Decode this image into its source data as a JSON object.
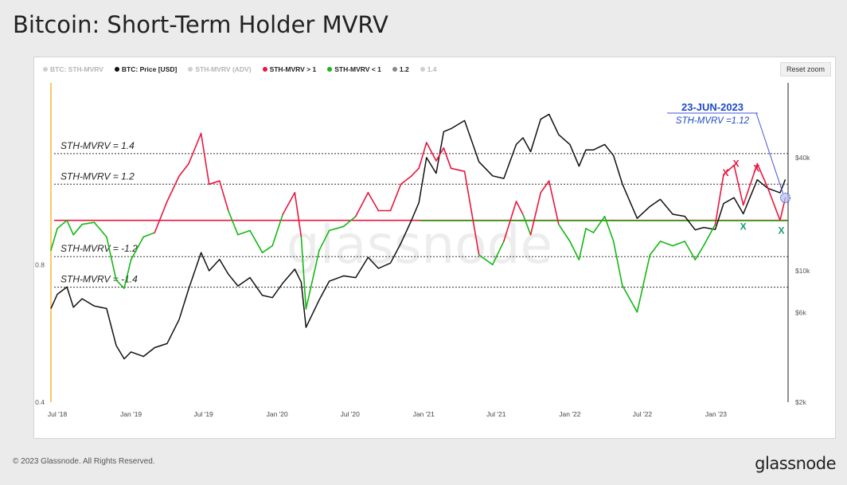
{
  "page": {
    "title": "Bitcoin: Short-Term Holder MVRV",
    "reset_zoom_label": "Reset zoom",
    "copyright": "© 2023 Glassnode. All Rights Reserved.",
    "logo_text": "glassnode",
    "watermark": "glassnode"
  },
  "chart_data": {
    "type": "line",
    "title": "Bitcoin: Short-Term Holder MVRV",
    "legend": [
      {
        "label": "BTC: STH-MVRV",
        "color": "#f5b731",
        "enabled": false
      },
      {
        "label": "BTC: Price [USD]",
        "color": "#111111",
        "enabled": true
      },
      {
        "label": "STH-MVRV (ADV)",
        "color": "#2c35b8",
        "enabled": false
      },
      {
        "label": "STH-MVRV > 1",
        "color": "#e8173f",
        "enabled": true
      },
      {
        "label": "STH-MVRV < 1",
        "color": "#14b814",
        "enabled": true
      },
      {
        "label": "1.2",
        "color": "#888888",
        "enabled": true
      },
      {
        "label": "1.4",
        "color": "#cccccc",
        "enabled": false
      }
    ],
    "legend_position": "top-left",
    "x_ticks": [
      "Jul '18",
      "Jan '19",
      "Jul '19",
      "Jan '20",
      "Jul '20",
      "Jan '21",
      "Jul '21",
      "Jan '22",
      "Jul '22",
      "Jan '23"
    ],
    "x_range": [
      "2018-06-15",
      "2023-06-30"
    ],
    "left_axis": {
      "scale": "log",
      "range": [
        0.4,
        2.0
      ],
      "tick_labels": [
        "0.4",
        "0.8"
      ]
    },
    "right_axis": {
      "scale": "log",
      "range": [
        2000,
        100000
      ],
      "tick_labels": [
        "$2k",
        "$6k",
        "$10k",
        "$40k"
      ]
    },
    "grid": false,
    "reference_lines": [
      {
        "label": "STH-MVRV = 1.4",
        "value": 1.4
      },
      {
        "label": "STH-MVRV = 1.2",
        "value": 1.2
      },
      {
        "label": "",
        "value": 1.0
      },
      {
        "label": "STH-MVRV = -1.2",
        "value": 0.833
      },
      {
        "label": "STH-MVRV = -1.4",
        "value": 0.714
      }
    ],
    "annotation": {
      "date": "23-JUN-2023",
      "text": "STH-MVRV =1.12",
      "value": 1.12
    },
    "markers": [
      {
        "symbol": "X",
        "color": "#e8173f",
        "date": "2023-01-25",
        "value": 1.27
      },
      {
        "symbol": "X",
        "color": "#e8173f",
        "date": "2023-02-20",
        "value": 1.33
      },
      {
        "symbol": "X",
        "color": "#e8173f",
        "date": "2023-04-12",
        "value": 1.3
      },
      {
        "symbol": "X",
        "color": "#14a06a",
        "date": "2023-03-10",
        "value": 0.97
      },
      {
        "symbol": "X",
        "color": "#14a06a",
        "date": "2023-06-13",
        "value": 0.95
      }
    ],
    "mvrv_series": {
      "name": "BTC: STH-MVRV",
      "x": [
        "2018-06-15",
        "2018-07-01",
        "2018-07-25",
        "2018-08-10",
        "2018-09-01",
        "2018-10-01",
        "2018-11-01",
        "2018-11-25",
        "2018-12-15",
        "2019-01-01",
        "2019-02-01",
        "2019-03-01",
        "2019-04-01",
        "2019-05-01",
        "2019-05-25",
        "2019-06-25",
        "2019-07-15",
        "2019-08-10",
        "2019-09-01",
        "2019-09-25",
        "2019-10-25",
        "2019-11-25",
        "2019-12-20",
        "2020-01-15",
        "2020-02-14",
        "2020-03-01",
        "2020-03-13",
        "2020-04-15",
        "2020-05-10",
        "2020-06-15",
        "2020-07-15",
        "2020-08-15",
        "2020-09-10",
        "2020-10-10",
        "2020-11-05",
        "2020-12-01",
        "2020-12-20",
        "2021-01-08",
        "2021-02-01",
        "2021-02-20",
        "2021-03-10",
        "2021-04-13",
        "2021-05-19",
        "2021-06-22",
        "2021-07-20",
        "2021-08-20",
        "2021-09-06",
        "2021-09-25",
        "2021-10-20",
        "2021-11-10",
        "2021-12-04",
        "2022-01-01",
        "2022-01-24",
        "2022-02-10",
        "2022-03-01",
        "2022-03-29",
        "2022-04-20",
        "2022-05-12",
        "2022-06-18",
        "2022-07-20",
        "2022-08-15",
        "2022-09-15",
        "2022-10-15",
        "2022-11-10",
        "2022-12-01",
        "2022-12-30",
        "2023-01-20",
        "2023-02-15",
        "2023-03-10",
        "2023-04-14",
        "2023-05-10",
        "2023-06-10",
        "2023-06-23"
      ],
      "y": [
        0.86,
        0.96,
        1.0,
        0.93,
        0.98,
        0.99,
        0.92,
        0.74,
        0.71,
        0.82,
        0.92,
        0.94,
        1.1,
        1.25,
        1.33,
        1.55,
        1.2,
        1.22,
        1.05,
        0.93,
        0.95,
        0.85,
        0.88,
        1.03,
        1.15,
        0.92,
        0.64,
        0.86,
        0.95,
        0.97,
        1.02,
        1.15,
        1.05,
        1.05,
        1.2,
        1.25,
        1.3,
        1.48,
        1.35,
        1.44,
        1.3,
        1.28,
        0.84,
        0.8,
        0.9,
        1.1,
        1.03,
        0.93,
        1.15,
        1.22,
        0.98,
        0.9,
        0.82,
        0.96,
        0.94,
        1.02,
        0.9,
        0.72,
        0.63,
        0.84,
        0.9,
        0.88,
        0.9,
        0.82,
        0.88,
        0.98,
        1.26,
        1.32,
        1.08,
        1.33,
        1.18,
        1.0,
        1.12
      ]
    },
    "price_series": {
      "name": "BTC: Price [USD]",
      "x": [
        "2018-06-15",
        "2018-07-01",
        "2018-07-25",
        "2018-08-10",
        "2018-09-01",
        "2018-10-01",
        "2018-11-01",
        "2018-11-25",
        "2018-12-15",
        "2019-01-01",
        "2019-02-01",
        "2019-03-01",
        "2019-04-01",
        "2019-05-01",
        "2019-05-25",
        "2019-06-25",
        "2019-07-15",
        "2019-08-10",
        "2019-09-01",
        "2019-09-25",
        "2019-10-25",
        "2019-11-25",
        "2019-12-20",
        "2020-01-15",
        "2020-02-14",
        "2020-03-01",
        "2020-03-13",
        "2020-04-15",
        "2020-05-10",
        "2020-06-15",
        "2020-07-15",
        "2020-08-15",
        "2020-09-10",
        "2020-10-10",
        "2020-11-05",
        "2020-12-01",
        "2020-12-20",
        "2021-01-08",
        "2021-02-01",
        "2021-02-20",
        "2021-03-10",
        "2021-04-13",
        "2021-05-19",
        "2021-06-22",
        "2021-07-20",
        "2021-08-20",
        "2021-09-06",
        "2021-09-25",
        "2021-10-20",
        "2021-11-10",
        "2021-12-04",
        "2022-01-01",
        "2022-01-24",
        "2022-02-10",
        "2022-03-01",
        "2022-03-29",
        "2022-04-20",
        "2022-05-12",
        "2022-06-18",
        "2022-07-20",
        "2022-08-15",
        "2022-09-15",
        "2022-10-15",
        "2022-11-10",
        "2022-12-01",
        "2022-12-30",
        "2023-01-20",
        "2023-02-15",
        "2023-03-10",
        "2023-04-14",
        "2023-05-10",
        "2023-06-10",
        "2023-06-23"
      ],
      "y": [
        6300,
        7500,
        8200,
        6400,
        7100,
        6500,
        6300,
        4000,
        3400,
        3700,
        3500,
        3900,
        4100,
        5500,
        8000,
        12500,
        10000,
        11500,
        9600,
        8300,
        9200,
        7400,
        7200,
        8600,
        10200,
        8700,
        5000,
        7000,
        8800,
        9400,
        9200,
        11800,
        10300,
        11000,
        14000,
        18500,
        23000,
        40000,
        33000,
        55000,
        57000,
        63000,
        38000,
        32000,
        31000,
        47000,
        51000,
        43000,
        64000,
        68000,
        53000,
        47000,
        36000,
        44000,
        44000,
        47000,
        41000,
        29000,
        19000,
        22000,
        24000,
        20000,
        19500,
        16500,
        17000,
        16600,
        22800,
        24500,
        20100,
        30500,
        27500,
        26000,
        30600
      ]
    }
  }
}
